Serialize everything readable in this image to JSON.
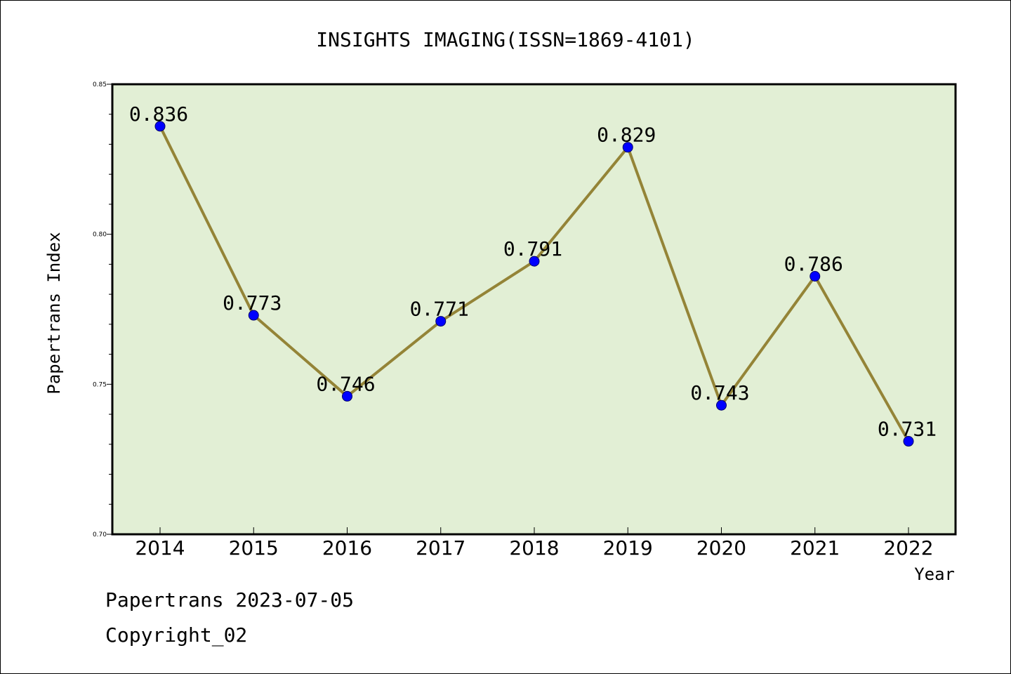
{
  "chart_data": {
    "type": "line",
    "title": "INSIGHTS IMAGING(ISSN=1869-4101)",
    "xlabel": "Year",
    "ylabel": "Papertrans Index",
    "categories": [
      "2014",
      "2015",
      "2016",
      "2017",
      "2018",
      "2019",
      "2020",
      "2021",
      "2022"
    ],
    "series": [
      {
        "values": [
          0.836,
          0.773,
          0.746,
          0.771,
          0.791,
          0.829,
          0.743,
          0.786,
          0.731
        ],
        "labels": [
          "0.836",
          "0.773",
          "0.746",
          "0.771",
          "0.791",
          "0.829",
          "0.743",
          "0.786",
          "0.731"
        ]
      }
    ],
    "ylim": [
      0.7,
      0.85
    ],
    "yticks": [
      "0.70",
      "0.75",
      "0.80",
      "0.85"
    ],
    "grid": false,
    "legend": "none",
    "colors": {
      "line": "#948437",
      "marker": "#0000ff",
      "plot_background": "#e2efd5"
    }
  },
  "footer": {
    "date_line": "Papertrans 2023-07-05",
    "copyright": "Copyright_02"
  }
}
